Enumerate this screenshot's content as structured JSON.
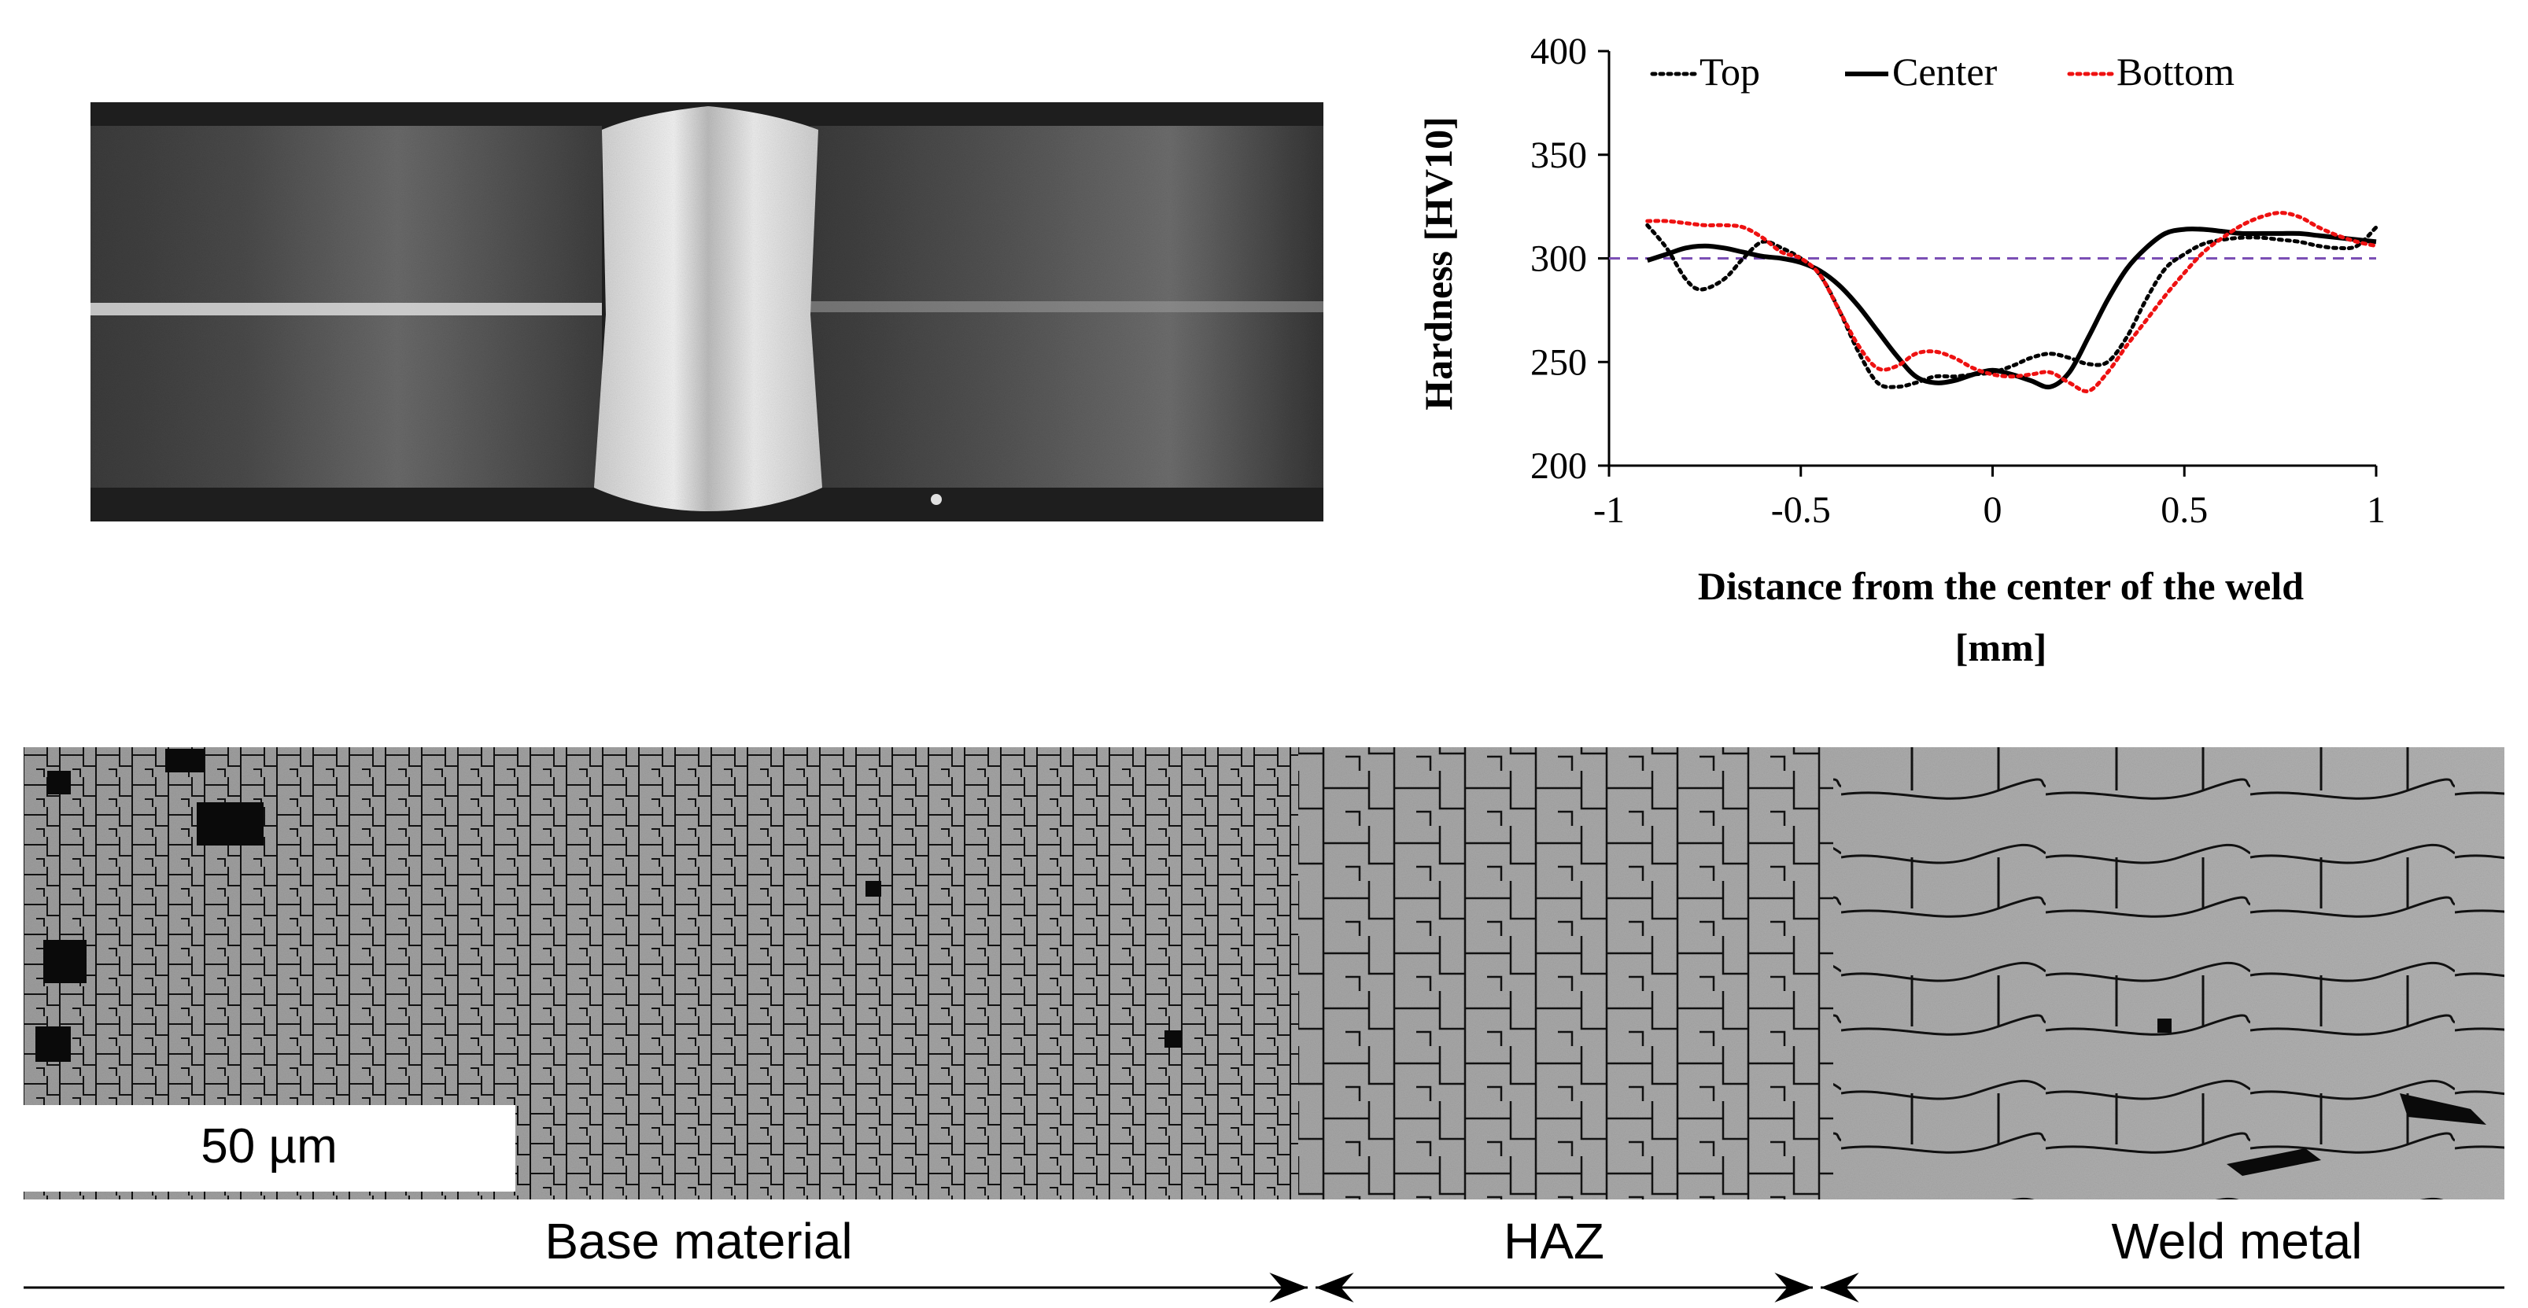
{
  "chart_data": {
    "type": "line",
    "title": "",
    "xlabel_line1": "Distance from the center of the weld",
    "xlabel_line2": "[mm]",
    "ylabel": "Hardness [HV10]",
    "xlim": [
      -1,
      1
    ],
    "ylim": [
      200,
      400
    ],
    "xticks": [
      "-1",
      "-0.5",
      "0",
      "0.5",
      "1"
    ],
    "yticks": [
      "200",
      "250",
      "300",
      "350",
      "400"
    ],
    "legend_placement": "top",
    "grid": false,
    "reference_line": {
      "y": 300,
      "color": "#7b4fb5",
      "style": "dashed"
    },
    "series": [
      {
        "name": "Top",
        "style": "dotted",
        "color": "#000000",
        "x": [
          -0.9,
          -0.85,
          -0.8,
          -0.76,
          -0.7,
          -0.65,
          -0.6,
          -0.55,
          -0.5,
          -0.45,
          -0.4,
          -0.35,
          -0.3,
          -0.25,
          -0.2,
          -0.15,
          -0.1,
          -0.05,
          0.0,
          0.05,
          0.1,
          0.15,
          0.2,
          0.25,
          0.3,
          0.35,
          0.4,
          0.45,
          0.5,
          0.55,
          0.6,
          0.65,
          0.7,
          0.75,
          0.8,
          0.85,
          0.9,
          0.95,
          1.0
        ],
        "y": [
          316,
          305,
          290,
          285,
          290,
          300,
          308,
          305,
          300,
          292,
          275,
          255,
          240,
          238,
          240,
          243,
          243,
          244,
          245,
          248,
          252,
          254,
          252,
          249,
          250,
          262,
          280,
          295,
          302,
          307,
          309,
          310,
          310,
          309,
          308,
          306,
          305,
          306,
          315
        ]
      },
      {
        "name": "Center",
        "style": "solid",
        "color": "#000000",
        "x": [
          -0.9,
          -0.85,
          -0.8,
          -0.75,
          -0.7,
          -0.65,
          -0.6,
          -0.55,
          -0.5,
          -0.45,
          -0.4,
          -0.35,
          -0.3,
          -0.25,
          -0.2,
          -0.15,
          -0.1,
          -0.05,
          0.0,
          0.05,
          0.1,
          0.15,
          0.2,
          0.25,
          0.3,
          0.35,
          0.4,
          0.45,
          0.5,
          0.55,
          0.6,
          0.65,
          0.7,
          0.75,
          0.8,
          0.85,
          0.9,
          0.95,
          1.0
        ],
        "y": [
          299,
          302,
          305,
          306,
          305,
          303,
          301,
          300,
          298,
          294,
          287,
          277,
          265,
          253,
          243,
          240,
          241,
          244,
          246,
          244,
          241,
          238,
          245,
          262,
          280,
          295,
          305,
          312,
          314,
          314,
          313,
          312,
          312,
          312,
          312,
          311,
          310,
          309,
          308
        ]
      },
      {
        "name": "Bottom",
        "style": "dotted",
        "color": "#ee1111",
        "x": [
          -0.9,
          -0.85,
          -0.8,
          -0.75,
          -0.7,
          -0.65,
          -0.6,
          -0.55,
          -0.5,
          -0.45,
          -0.4,
          -0.35,
          -0.3,
          -0.25,
          -0.2,
          -0.15,
          -0.1,
          -0.05,
          0.0,
          0.05,
          0.1,
          0.15,
          0.2,
          0.25,
          0.3,
          0.35,
          0.4,
          0.45,
          0.5,
          0.55,
          0.6,
          0.65,
          0.7,
          0.75,
          0.8,
          0.85,
          0.9,
          0.95,
          1.0
        ],
        "y": [
          318,
          318,
          317,
          316,
          316,
          315,
          310,
          303,
          300,
          292,
          275,
          258,
          247,
          248,
          254,
          255,
          252,
          247,
          244,
          243,
          244,
          245,
          240,
          236,
          245,
          258,
          270,
          282,
          293,
          303,
          310,
          316,
          320,
          322,
          320,
          315,
          311,
          308,
          306
        ]
      }
    ]
  },
  "figure": {
    "scale_bar_label": "50 µm",
    "region_labels": [
      "Base material",
      "HAZ",
      "Weld metal"
    ]
  },
  "colors": {
    "plate_dark": "#2a2a2a",
    "weld_bright": "#e6e6e6",
    "ebsd_gray": "#a9a9a9"
  }
}
